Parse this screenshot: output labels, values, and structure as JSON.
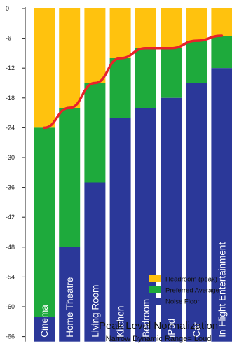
{
  "chart_data": {
    "type": "bar",
    "title": "Peak Level Normalization",
    "subtitle": "Narrow Dynamic Range= Loud",
    "xlabel": "",
    "ylabel": "",
    "ylim": [
      -67,
      1
    ],
    "yticks": [
      0,
      -6,
      -12,
      -18,
      -24,
      -30,
      -36,
      -42,
      -48,
      -54,
      -60,
      -66
    ],
    "categories": [
      "Cinema",
      "Home Theatre",
      "Living Room",
      "Kitchen",
      "Bedroom",
      "iPod",
      "Car",
      "In Flight Entertainment"
    ],
    "series": [
      {
        "name": "Noise Floor",
        "color": "#2b3899",
        "top": [
          -62,
          -48,
          -35,
          -22,
          -20,
          -18,
          -15,
          -12
        ],
        "bottom": -67
      },
      {
        "name": "Preferred Average",
        "color": "#1eaa3c",
        "top": [
          -24,
          -20,
          -15,
          -10,
          -8,
          -8,
          -6.5,
          -5.5
        ]
      },
      {
        "name": "Headroom (peak)",
        "color": "#ffc20e",
        "top": [
          0,
          0,
          0,
          0,
          0,
          0,
          0,
          0
        ]
      }
    ],
    "trend_line": {
      "color": "#e8222a",
      "values": [
        -24,
        -20,
        -15,
        -10,
        -8,
        -8,
        -6.5,
        -5.5
      ]
    },
    "legend_position": "bottom-right",
    "grid": false
  }
}
